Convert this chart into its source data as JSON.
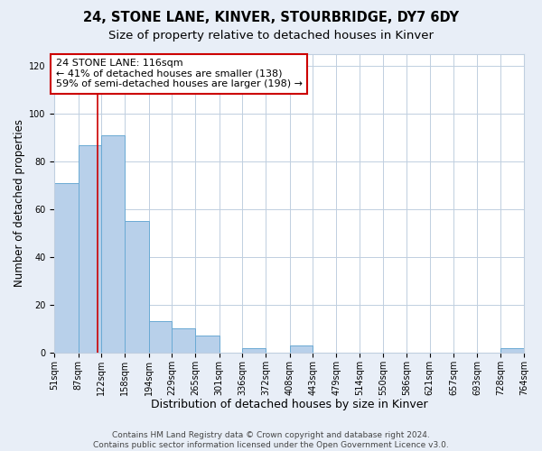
{
  "title": "24, STONE LANE, KINVER, STOURBRIDGE, DY7 6DY",
  "subtitle": "Size of property relative to detached houses in Kinver",
  "xlabel": "Distribution of detached houses by size in Kinver",
  "ylabel": "Number of detached properties",
  "bin_edges": [
    51,
    87,
    122,
    158,
    194,
    229,
    265,
    301,
    336,
    372,
    408,
    443,
    479,
    514,
    550,
    586,
    621,
    657,
    693,
    728,
    764
  ],
  "bin_heights": [
    71,
    87,
    91,
    55,
    13,
    10,
    7,
    0,
    2,
    0,
    3,
    0,
    0,
    0,
    0,
    0,
    0,
    0,
    0,
    2
  ],
  "bar_color": "#b8d0ea",
  "bar_edge_color": "#6aaad4",
  "property_line_x": 116,
  "property_line_color": "#cc0000",
  "annotation_line1": "24 STONE LANE: 116sqm",
  "annotation_line2": "← 41% of detached houses are smaller (138)",
  "annotation_line3": "59% of semi-detached houses are larger (198) →",
  "annotation_box_edgecolor": "#cc0000",
  "ylim_min": 0,
  "ylim_max": 125,
  "yticks": [
    0,
    20,
    40,
    60,
    80,
    100,
    120
  ],
  "footer1": "Contains HM Land Registry data © Crown copyright and database right 2024.",
  "footer2": "Contains public sector information licensed under the Open Government Licence v3.0.",
  "bg_color": "#e8eef7",
  "plot_bg_color": "#ffffff",
  "grid_color": "#c0cfe0",
  "title_fontsize": 10.5,
  "subtitle_fontsize": 9.5,
  "xlabel_fontsize": 9,
  "ylabel_fontsize": 8.5,
  "tick_fontsize": 7,
  "annotation_fontsize": 8,
  "footer_fontsize": 6.5
}
